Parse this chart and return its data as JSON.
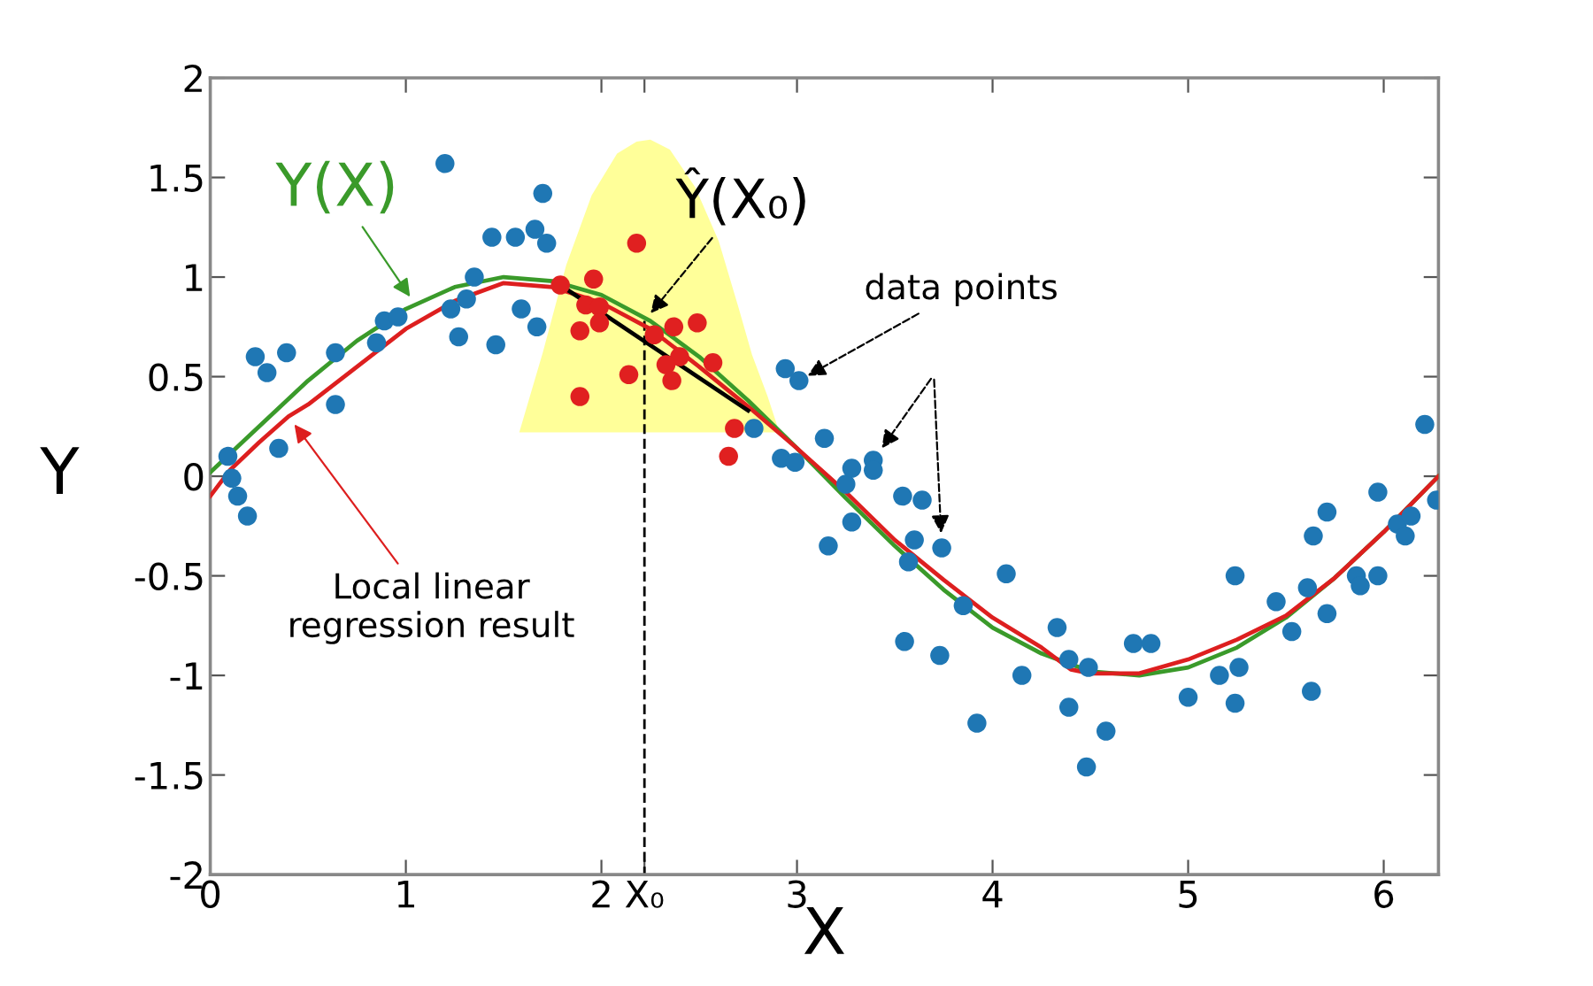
{
  "chart_data": {
    "type": "scatter",
    "xlabel": "X",
    "ylabel": "Y",
    "xlim": [
      0,
      6.28
    ],
    "ylim": [
      -2,
      2
    ],
    "xticks": [
      0,
      1,
      2,
      {
        "value": 2.22,
        "label": "X₀"
      },
      3,
      4,
      5,
      6
    ],
    "yticks": [
      {
        "value": -2,
        "label": "-2"
      },
      {
        "value": -1.5,
        "label": "-1.5"
      },
      {
        "value": -1,
        "label": "-1"
      },
      {
        "value": -0.5,
        "label": "-0.5"
      },
      0,
      0.5,
      1,
      1.5,
      2
    ],
    "grid": false,
    "legend": false,
    "series": [
      {
        "type": "area",
        "color": "#ffff99",
        "x": [
          1.58,
          1.7,
          1.82,
          1.95,
          2.08,
          2.18,
          2.25,
          2.35,
          2.48,
          2.6,
          2.7,
          2.77,
          2.85,
          2.91
        ],
        "values": [
          0.22,
          0.62,
          1.06,
          1.41,
          1.62,
          1.68,
          1.69,
          1.64,
          1.45,
          1.18,
          0.85,
          0.61,
          0.4,
          0.22
        ]
      },
      {
        "color": "#1f77b4",
        "marker": "circle",
        "x": [
          0.09,
          0.11,
          0.14,
          0.19,
          0.23,
          0.29,
          0.35,
          0.39,
          0.64,
          0.64,
          0.85,
          0.89,
          0.96,
          1.2,
          1.23,
          1.27,
          1.31,
          1.35,
          1.44,
          1.46,
          1.56,
          1.59,
          1.66,
          1.7,
          1.72,
          1.67,
          2.78,
          2.92,
          2.99,
          2.94,
          3.01,
          3.14,
          3.16,
          3.25,
          3.28,
          3.28,
          3.39,
          3.39,
          3.54,
          3.64,
          3.6,
          3.57,
          3.74,
          3.85,
          3.55,
          3.73,
          3.92,
          4.07,
          4.15,
          4.33,
          4.39,
          4.39,
          4.49,
          4.58,
          4.48,
          4.72,
          4.81,
          5.0,
          5.16,
          5.26,
          5.24,
          5.24,
          5.45,
          5.53,
          5.61,
          5.63,
          5.64,
          5.71,
          5.71,
          5.86,
          5.88,
          5.97,
          5.97,
          6.07,
          6.11,
          6.14,
          6.21,
          6.27
        ],
        "values": [
          0.1,
          -0.01,
          -0.1,
          -0.2,
          0.6,
          0.52,
          0.14,
          0.62,
          0.62,
          0.36,
          0.67,
          0.78,
          0.8,
          1.57,
          0.84,
          0.7,
          0.89,
          1.0,
          1.2,
          0.66,
          1.2,
          0.84,
          1.24,
          1.42,
          1.17,
          0.75,
          0.24,
          0.09,
          0.07,
          0.54,
          0.48,
          0.19,
          -0.35,
          -0.04,
          0.04,
          -0.23,
          0.08,
          0.03,
          -0.1,
          -0.12,
          -0.32,
          -0.43,
          -0.36,
          -0.65,
          -0.83,
          -0.9,
          -1.24,
          -0.49,
          -1.0,
          -0.76,
          -0.92,
          -1.16,
          -0.96,
          -1.28,
          -1.46,
          -0.84,
          -0.84,
          -1.11,
          -1.0,
          -0.96,
          -0.5,
          -1.14,
          -0.63,
          -0.78,
          -0.56,
          -1.08,
          -0.3,
          -0.69,
          -0.18,
          -0.5,
          -0.55,
          -0.5,
          -0.08,
          -0.24,
          -0.3,
          -0.2,
          0.26,
          -0.12
        ]
      },
      {
        "color": "#e02020",
        "marker": "circle",
        "x": [
          1.79,
          1.96,
          1.92,
          1.99,
          1.89,
          1.99,
          2.18,
          1.89,
          2.14,
          2.27,
          2.37,
          2.49,
          2.4,
          2.33,
          2.36,
          2.57,
          2.68,
          2.65
        ],
        "values": [
          0.96,
          0.99,
          0.86,
          0.85,
          0.73,
          0.77,
          1.17,
          0.4,
          0.51,
          0.71,
          0.75,
          0.77,
          0.6,
          0.56,
          0.48,
          0.57,
          0.24,
          0.1
        ]
      },
      {
        "type": "line",
        "color": "#3a9a2a",
        "marker": "none",
        "x": [
          0,
          0.25,
          0.5,
          0.75,
          1,
          1.25,
          1.5,
          1.75,
          2,
          2.25,
          2.5,
          2.75,
          3,
          3.25,
          3.5,
          3.75,
          4,
          4.25,
          4.5,
          4.75,
          5,
          5.25,
          5.5,
          5.75,
          6,
          6.28
        ],
        "values": [
          0.02,
          0.25,
          0.48,
          0.68,
          0.84,
          0.95,
          1.0,
          0.98,
          0.91,
          0.78,
          0.6,
          0.38,
          0.14,
          -0.11,
          -0.35,
          -0.57,
          -0.76,
          -0.89,
          -0.98,
          -1.0,
          -0.96,
          -0.86,
          -0.71,
          -0.51,
          -0.28,
          0.0
        ]
      },
      {
        "type": "line",
        "color": "#dd1f1f",
        "marker": "none",
        "x": [
          0,
          0.1,
          0.25,
          0.4,
          0.5,
          0.75,
          1,
          1.25,
          1.5,
          1.75,
          2,
          2.25,
          2.5,
          2.75,
          3,
          3.25,
          3.5,
          3.75,
          4,
          4.25,
          4.4,
          4.5,
          4.75,
          5,
          5.25,
          5.5,
          5.75,
          6,
          6.28
        ],
        "values": [
          -0.1,
          0.03,
          0.17,
          0.3,
          0.36,
          0.55,
          0.74,
          0.88,
          0.97,
          0.95,
          0.87,
          0.74,
          0.55,
          0.35,
          0.14,
          -0.08,
          -0.32,
          -0.52,
          -0.71,
          -0.86,
          -0.97,
          -0.99,
          -0.99,
          -0.92,
          -0.82,
          -0.7,
          -0.51,
          -0.28,
          0.0
        ]
      },
      {
        "type": "line",
        "color": "#000000",
        "marker": "none",
        "x": [
          1.82,
          2.75
        ],
        "values": [
          0.94,
          0.33
        ]
      },
      {
        "type": "line",
        "color": "#000000",
        "marker": "none",
        "line_style": "dashed",
        "x": [
          2.22,
          2.22
        ],
        "values": [
          0.78,
          -2
        ]
      }
    ],
    "annotations": [
      {
        "text": "Y(X)",
        "x": 1.05,
        "y": 0.86
      },
      {
        "text": "Ŷ(X₀)",
        "x": 2.22,
        "y": 0.78
      },
      {
        "text": "data points",
        "x": 3.01,
        "y": 0.48
      },
      {
        "text": "Local linear\nregression result",
        "x": 0.4,
        "y": 0.3
      }
    ]
  }
}
